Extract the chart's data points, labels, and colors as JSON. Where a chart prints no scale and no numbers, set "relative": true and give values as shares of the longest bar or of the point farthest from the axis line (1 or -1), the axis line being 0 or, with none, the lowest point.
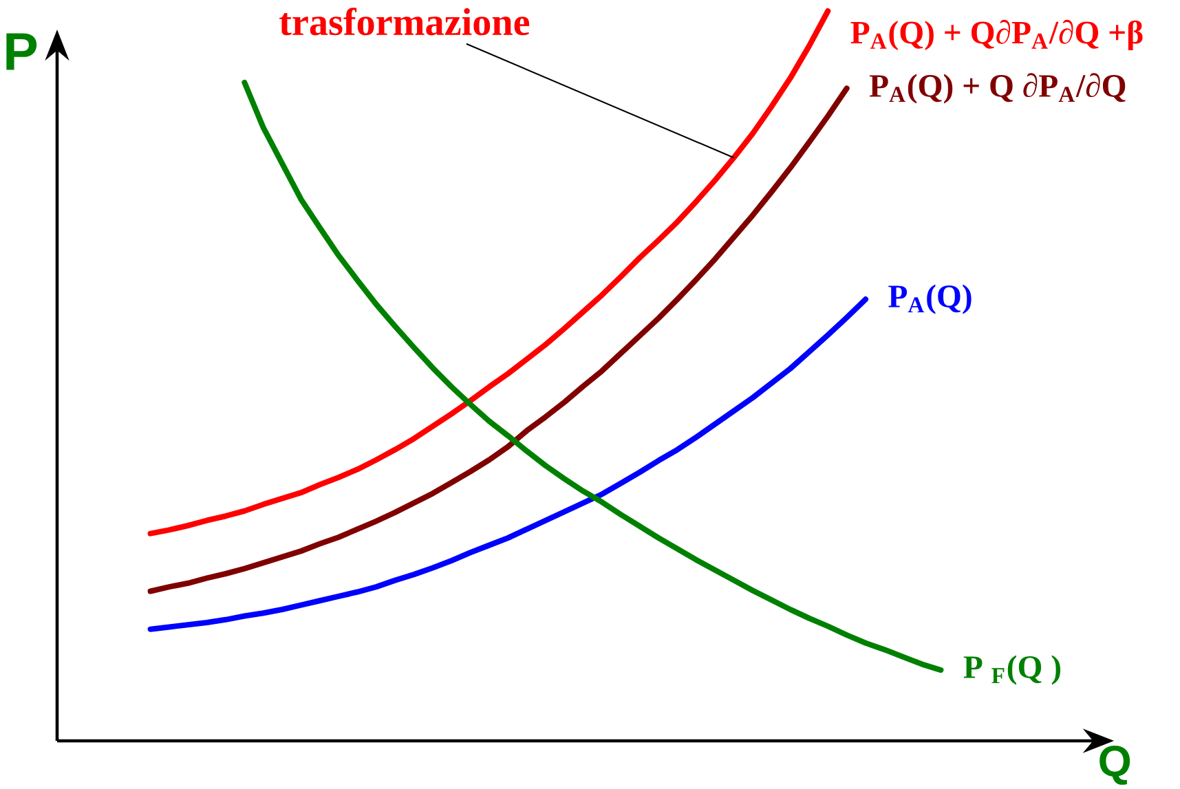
{
  "chart_data": {
    "type": "line",
    "relative": true,
    "categories": [
      null,
      null,
      null,
      null,
      null,
      null,
      null,
      null,
      null,
      null,
      null,
      null,
      null,
      null,
      null,
      null,
      null,
      null,
      null,
      null,
      null,
      null,
      null,
      null,
      null,
      null,
      null,
      null,
      null,
      null,
      null,
      null,
      null,
      null,
      null,
      null,
      null,
      null,
      null,
      null,
      null,
      null,
      null
    ],
    "xlabel": "Q",
    "ylabel": "P",
    "marker": "none",
    "line_style": "solid",
    "annotations": [
      "trasformazione"
    ],
    "series": [
      {
        "name": "P$_{A}$(Q) + Q∂P$_{A}$/∂Q  +β",
        "color": "#ff0000",
        "values": [
          0.284,
          0.289,
          0.295,
          0.302,
          0.308,
          0.315,
          0.324,
          0.332,
          0.34,
          0.351,
          0.361,
          0.372,
          0.385,
          0.399,
          0.414,
          0.431,
          0.448,
          0.466,
          0.485,
          0.503,
          0.523,
          0.543,
          0.565,
          0.588,
          0.611,
          0.636,
          0.662,
          0.686,
          0.711,
          0.739,
          0.768,
          0.799,
          0.832,
          0.869,
          0.908,
          0.952,
          1.0,
          null,
          null,
          null,
          null,
          null,
          null
        ]
      },
      {
        "name": "P$_{A}$(Q) + Q ∂P$_{A}$/∂Q",
        "color": "#800000",
        "values": [
          0.205,
          0.211,
          0.216,
          0.223,
          0.229,
          0.236,
          0.244,
          0.252,
          0.26,
          0.27,
          0.279,
          0.29,
          0.301,
          0.313,
          0.326,
          0.339,
          0.354,
          0.369,
          0.385,
          0.403,
          0.425,
          0.444,
          0.464,
          0.486,
          0.507,
          0.531,
          0.555,
          0.579,
          0.605,
          0.632,
          0.66,
          0.69,
          0.72,
          0.752,
          0.785,
          0.82,
          0.856,
          0.894,
          null,
          null,
          null,
          null,
          null
        ]
      },
      {
        "name": "P$_{A}$(Q)",
        "color": "#0000ff",
        "values": [
          0.153,
          0.156,
          0.159,
          0.162,
          0.166,
          0.171,
          0.175,
          0.18,
          0.186,
          0.192,
          0.198,
          0.204,
          0.211,
          0.22,
          0.228,
          0.237,
          0.247,
          0.258,
          0.268,
          0.278,
          0.29,
          0.302,
          0.314,
          0.326,
          0.338,
          0.353,
          0.368,
          0.384,
          0.399,
          0.416,
          0.434,
          0.452,
          0.47,
          0.49,
          0.51,
          0.533,
          0.556,
          0.58,
          0.605,
          null,
          null,
          null,
          null
        ]
      },
      {
        "name": "P $_{F}$(Q )",
        "color": "#008000",
        "values": [
          null,
          null,
          null,
          null,
          null,
          0.902,
          0.84,
          0.791,
          0.742,
          0.703,
          0.665,
          0.631,
          0.598,
          0.568,
          0.539,
          0.511,
          0.485,
          0.461,
          0.438,
          0.418,
          0.397,
          0.377,
          0.359,
          0.342,
          0.327,
          0.31,
          0.294,
          0.278,
          0.263,
          0.248,
          0.234,
          0.22,
          0.206,
          0.193,
          0.18,
          0.168,
          0.157,
          0.145,
          0.134,
          0.125,
          0.115,
          0.105,
          0.097
        ]
      }
    ]
  }
}
